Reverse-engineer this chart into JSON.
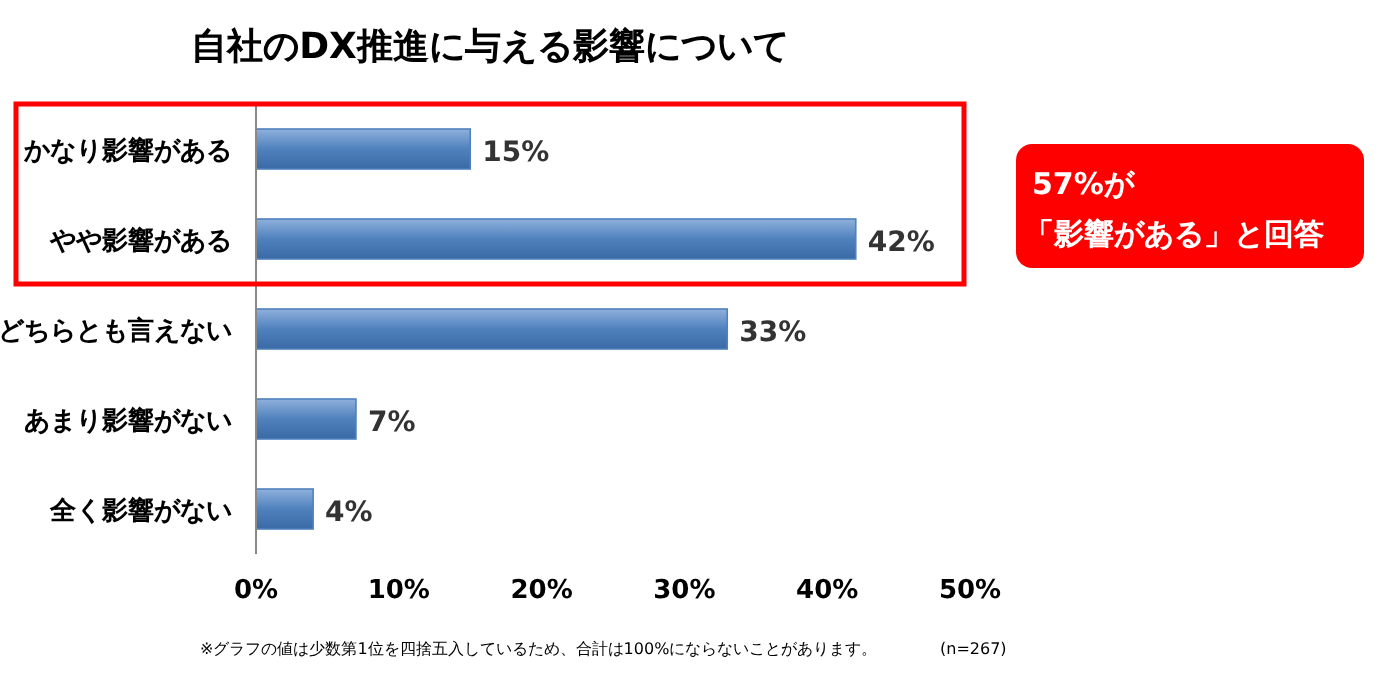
{
  "chart_data": {
    "type": "bar",
    "orientation": "horizontal",
    "title": "自社のDX推進に与える影響について",
    "categories": [
      "かなり影響がある",
      "やや影響がある",
      "どちらとも言えない",
      "あまり影響がない",
      "全く影響がない"
    ],
    "values": [
      15,
      42,
      33,
      7,
      4
    ],
    "value_labels": [
      "15%",
      "42%",
      "33%",
      "7%",
      "4%"
    ],
    "color": "#4f81bd",
    "xlim": [
      0,
      50
    ],
    "xticks": [
      {
        "value": 0,
        "label": "0%"
      },
      {
        "value": 10,
        "label": "10%"
      },
      {
        "value": 20,
        "label": "20%"
      },
      {
        "value": 30,
        "label": "30%"
      },
      {
        "value": 40,
        "label": "40%"
      },
      {
        "value": 50,
        "label": "50%"
      }
    ],
    "grid": false,
    "annotations": [
      "57%が",
      "「影響がある」と回答",
      "※グラフの値は少数第1位を四捨五入しているため、合計は100%にならないことがあります。",
      "(n=267)"
    ]
  }
}
